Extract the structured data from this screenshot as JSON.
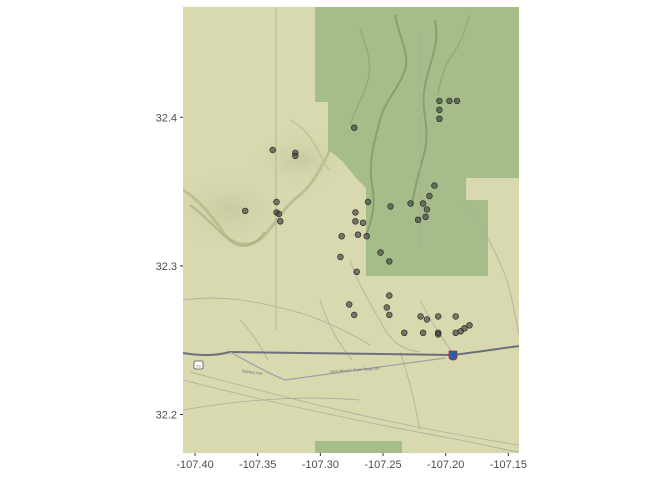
{
  "map": {
    "x_axis": {
      "ticks": [
        -107.4,
        -107.35,
        -107.3,
        -107.25,
        -107.2,
        -107.15
      ],
      "labels": [
        "-107.40",
        "-107.35",
        "-107.30",
        "-107.25",
        "-107.20",
        "-107.15"
      ]
    },
    "y_axis": {
      "ticks": [
        32.2,
        32.3,
        32.4
      ],
      "labels": [
        "32.2",
        "32.3",
        "32.4"
      ]
    },
    "xlim": [
      -107.4096,
      -107.1415
    ],
    "ylim": [
      32.1741,
      32.4742
    ],
    "road_labels": {
      "shield": "26",
      "road_short": "Bypass Ave",
      "road_long": "New Mexico State Road 187"
    },
    "colors": {
      "base": "#d8d9ae",
      "forest": "#a6bd8a",
      "points": "#3f3f3f",
      "road": "#6d6f7a",
      "shield": "#2d5bb0"
    }
  },
  "chart_data": {
    "type": "scatter",
    "x_label": "",
    "y_label": "",
    "points": [
      {
        "x": -107.338,
        "y": 32.378
      },
      {
        "x": -107.32,
        "y": 32.376
      },
      {
        "x": -107.32,
        "y": 32.374
      },
      {
        "x": -107.335,
        "y": 32.343
      },
      {
        "x": -107.335,
        "y": 32.336
      },
      {
        "x": -107.333,
        "y": 32.335
      },
      {
        "x": -107.332,
        "y": 32.33
      },
      {
        "x": -107.36,
        "y": 32.337
      },
      {
        "x": -107.273,
        "y": 32.393
      },
      {
        "x": -107.262,
        "y": 32.343
      },
      {
        "x": -107.272,
        "y": 32.336
      },
      {
        "x": -107.272,
        "y": 32.33
      },
      {
        "x": -107.266,
        "y": 32.329
      },
      {
        "x": -107.27,
        "y": 32.321
      },
      {
        "x": -107.263,
        "y": 32.32
      },
      {
        "x": -107.283,
        "y": 32.32
      },
      {
        "x": -107.284,
        "y": 32.306
      },
      {
        "x": -107.252,
        "y": 32.309
      },
      {
        "x": -107.245,
        "y": 32.303
      },
      {
        "x": -107.271,
        "y": 32.296
      },
      {
        "x": -107.245,
        "y": 32.28
      },
      {
        "x": -107.277,
        "y": 32.274
      },
      {
        "x": -107.247,
        "y": 32.272
      },
      {
        "x": -107.273,
        "y": 32.267
      },
      {
        "x": -107.245,
        "y": 32.267
      },
      {
        "x": -107.244,
        "y": 32.34
      },
      {
        "x": -107.228,
        "y": 32.342
      },
      {
        "x": -107.218,
        "y": 32.342
      },
      {
        "x": -107.215,
        "y": 32.338
      },
      {
        "x": -107.216,
        "y": 32.333
      },
      {
        "x": -107.222,
        "y": 32.331
      },
      {
        "x": -107.213,
        "y": 32.347
      },
      {
        "x": -107.209,
        "y": 32.354
      },
      {
        "x": -107.205,
        "y": 32.411
      },
      {
        "x": -107.197,
        "y": 32.411
      },
      {
        "x": -107.191,
        "y": 32.411
      },
      {
        "x": -107.205,
        "y": 32.405
      },
      {
        "x": -107.205,
        "y": 32.399
      },
      {
        "x": -107.22,
        "y": 32.266
      },
      {
        "x": -107.215,
        "y": 32.264
      },
      {
        "x": -107.206,
        "y": 32.266
      },
      {
        "x": -107.192,
        "y": 32.266
      },
      {
        "x": -107.233,
        "y": 32.255
      },
      {
        "x": -107.218,
        "y": 32.255
      },
      {
        "x": -107.206,
        "y": 32.255
      },
      {
        "x": -107.206,
        "y": 32.254
      },
      {
        "x": -107.192,
        "y": 32.255
      },
      {
        "x": -107.188,
        "y": 32.256
      },
      {
        "x": -107.185,
        "y": 32.258
      },
      {
        "x": -107.181,
        "y": 32.26
      }
    ]
  }
}
